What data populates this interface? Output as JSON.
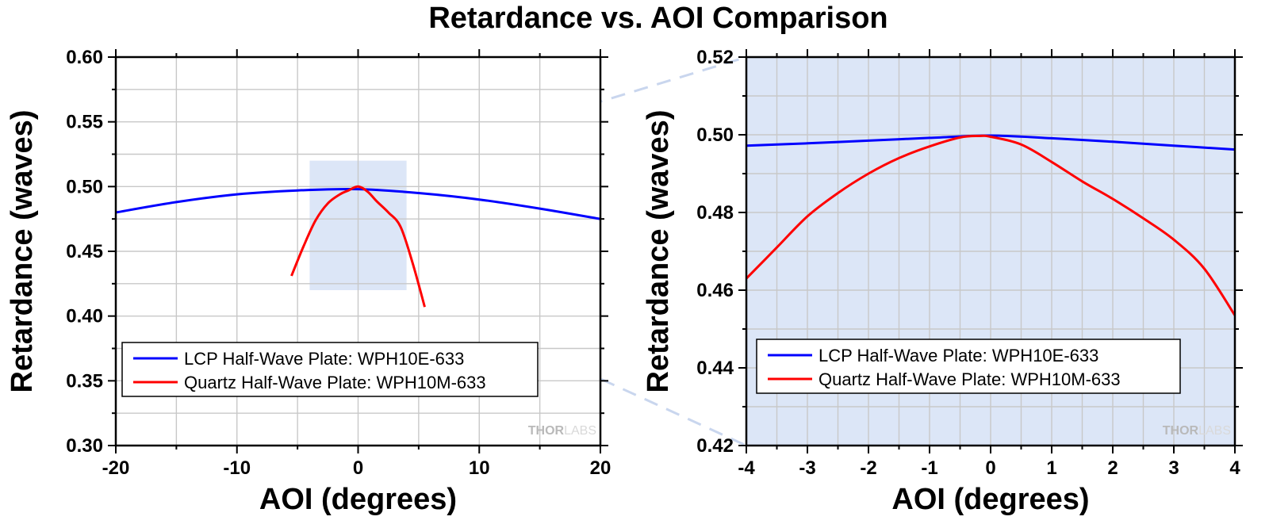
{
  "title": "Retardance vs. AOI Comparison",
  "watermark": {
    "bold": "THOR",
    "light": "LABS"
  },
  "colors": {
    "lcp": "#0000ff",
    "quartz": "#ff0000",
    "zoom_region": "#dce6f7",
    "grid": "#c8c8c8"
  },
  "chart_data": [
    {
      "type": "line",
      "xlabel": "AOI (degrees)",
      "ylabel": "Retardance (waves)",
      "xlim": [
        -20,
        20
      ],
      "ylim": [
        0.3,
        0.6
      ],
      "xticks": [
        -20,
        -10,
        0,
        10,
        20
      ],
      "xtick_labels": [
        "-20",
        "-10",
        "0",
        "10",
        "20"
      ],
      "yticks": [
        0.3,
        0.35,
        0.4,
        0.45,
        0.5,
        0.55,
        0.6
      ],
      "ytick_labels": [
        "0.30",
        "0.35",
        "0.40",
        "0.45",
        "0.50",
        "0.55",
        "0.60"
      ],
      "grid": true,
      "legend_position": "bottom-left",
      "zoom_region": {
        "x": [
          -4,
          4
        ],
        "y": [
          0.42,
          0.52
        ]
      },
      "series": [
        {
          "name": "LCP Half-Wave Plate: WPH10E-633",
          "color": "#0000ff",
          "x": [
            -20,
            -15,
            -10,
            -5,
            0,
            5,
            10,
            15,
            20
          ],
          "y": [
            0.48,
            0.488,
            0.494,
            0.497,
            0.498,
            0.495,
            0.49,
            0.483,
            0.475
          ]
        },
        {
          "name": "Quartz Half-Wave Plate: WPH10M-633",
          "color": "#ff0000",
          "x": [
            -5.5,
            -4.5,
            -3.5,
            -2.5,
            -1.5,
            -0.8,
            0,
            0.8,
            1.5,
            2.5,
            3.5,
            4.5,
            5.5
          ],
          "y": [
            0.431,
            0.454,
            0.474,
            0.487,
            0.494,
            0.497,
            0.5,
            0.496,
            0.489,
            0.48,
            0.469,
            0.441,
            0.407
          ]
        }
      ]
    },
    {
      "type": "line",
      "xlabel": "AOI (degrees)",
      "ylabel": "Retardance (waves)",
      "xlim": [
        -4,
        4
      ],
      "ylim": [
        0.42,
        0.52
      ],
      "xticks": [
        -4,
        -3,
        -2,
        -1,
        0,
        1,
        2,
        3,
        4
      ],
      "xtick_labels": [
        "-4",
        "-3",
        "-2",
        "-1",
        "0",
        "1",
        "2",
        "3",
        "4"
      ],
      "yticks": [
        0.42,
        0.44,
        0.46,
        0.48,
        0.5,
        0.52
      ],
      "ytick_labels": [
        "0.42",
        "0.44",
        "0.46",
        "0.48",
        "0.50",
        "0.52"
      ],
      "grid": true,
      "legend_position": "bottom-left",
      "series": [
        {
          "name": "LCP Half-Wave Plate: WPH10E-633",
          "color": "#0000ff",
          "x": [
            -4,
            -3,
            -2,
            -1,
            0,
            1,
            2,
            3,
            4
          ],
          "y": [
            0.4972,
            0.4978,
            0.4985,
            0.4992,
            0.4998,
            0.4991,
            0.4982,
            0.4972,
            0.4962
          ]
        },
        {
          "name": "Quartz Half-Wave Plate: WPH10M-633",
          "color": "#ff0000",
          "x": [
            -4,
            -3.5,
            -3,
            -2.5,
            -2,
            -1.5,
            -1,
            -0.5,
            -0.2,
            0,
            0.5,
            1,
            1.5,
            2,
            2.5,
            3,
            3.5,
            4
          ],
          "y": [
            0.463,
            0.471,
            0.479,
            0.485,
            0.49,
            0.494,
            0.497,
            0.4993,
            0.4997,
            0.4995,
            0.4975,
            0.493,
            0.488,
            0.4835,
            0.4785,
            0.473,
            0.4655,
            0.4535
          ]
        }
      ]
    }
  ]
}
